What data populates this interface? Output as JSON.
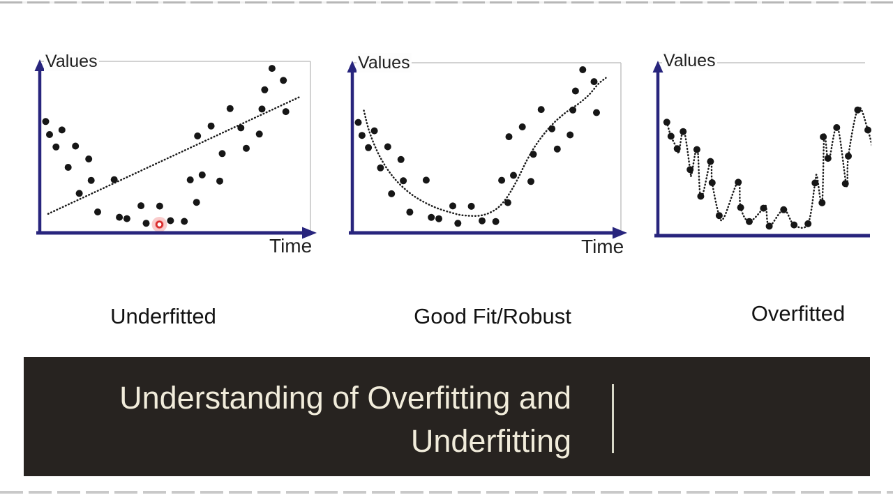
{
  "page": {
    "background": "#ffffff",
    "top_edge_color": "#b7b7b7",
    "bottom_edge_color": "#c9c9c9"
  },
  "banner": {
    "title": "Understanding of Overfitting and\nUnderfitting",
    "background": "#272320",
    "text_color": "#f1ecdb",
    "separator_color": "#d8d8c8"
  },
  "chart_data": [
    {
      "type": "scatter",
      "caption": "Underfitted",
      "ylabel": "Values",
      "xlabel": "Time",
      "axis_color": "#28257d",
      "dot_color": "#161616",
      "fit_color": "#1a1a1a",
      "frame_color": "#c4c4c4",
      "axis_ticks": "none",
      "legend": "none",
      "xlim": [
        0,
        100
      ],
      "ylim": [
        0,
        100
      ],
      "fit_style": "linear-dotted",
      "points": [
        [
          2.2,
          64.9
        ],
        [
          3.6,
          57.3
        ],
        [
          6.0,
          50.1
        ],
        [
          8.2,
          60.0
        ],
        [
          10.5,
          38.2
        ],
        [
          13.2,
          50.6
        ],
        [
          14.6,
          23.0
        ],
        [
          18.1,
          43.1
        ],
        [
          19.0,
          30.6
        ],
        [
          21.4,
          12.2
        ],
        [
          27.5,
          31.0
        ],
        [
          29.4,
          9.1
        ],
        [
          32.2,
          8.3
        ],
        [
          37.4,
          15.8
        ],
        [
          39.3,
          5.6
        ],
        [
          44.3,
          15.6
        ],
        [
          48.3,
          7.1
        ],
        [
          53.4,
          6.7
        ],
        [
          55.6,
          30.9
        ],
        [
          57.9,
          17.8
        ],
        [
          58.3,
          56.5
        ],
        [
          60.0,
          33.8
        ],
        [
          63.3,
          62.3
        ],
        [
          66.5,
          30.2
        ],
        [
          67.4,
          46.2
        ],
        [
          70.3,
          72.5
        ],
        [
          74.3,
          61.2
        ],
        [
          76.3,
          49.3
        ],
        [
          81.1,
          57.6
        ],
        [
          82.1,
          72.2
        ],
        [
          83.1,
          83.4
        ],
        [
          85.8,
          95.9
        ],
        [
          90.0,
          88.9
        ],
        [
          90.9,
          70.7
        ]
      ],
      "fit_line": [
        [
          3.1,
          11.1
        ],
        [
          95.8,
          79.1
        ]
      ],
      "highlight_point": [
        44.2,
        4.9
      ],
      "highlight_color": "#d92b2b"
    },
    {
      "type": "scatter",
      "caption": "Good Fit/Robust",
      "ylabel": "Values",
      "xlabel": "Time",
      "axis_color": "#28257d",
      "dot_color": "#161616",
      "fit_color": "#1a1a1a",
      "frame_color": "#c4c4c4",
      "axis_ticks": "none",
      "legend": "none",
      "xlim": [
        0,
        100
      ],
      "ylim": [
        0,
        100
      ],
      "fit_style": "smooth-dotted",
      "points": [
        [
          2.2,
          64.9
        ],
        [
          3.6,
          57.3
        ],
        [
          6.0,
          50.1
        ],
        [
          8.2,
          60.0
        ],
        [
          10.5,
          38.2
        ],
        [
          13.2,
          50.6
        ],
        [
          14.6,
          23.0
        ],
        [
          18.1,
          43.1
        ],
        [
          19.0,
          30.6
        ],
        [
          21.4,
          12.2
        ],
        [
          27.5,
          31.0
        ],
        [
          29.4,
          9.1
        ],
        [
          32.2,
          8.3
        ],
        [
          37.4,
          15.8
        ],
        [
          39.3,
          5.6
        ],
        [
          44.3,
          15.6
        ],
        [
          48.3,
          7.1
        ],
        [
          53.4,
          6.7
        ],
        [
          55.6,
          30.9
        ],
        [
          57.9,
          17.8
        ],
        [
          58.3,
          56.5
        ],
        [
          60.0,
          33.8
        ],
        [
          63.3,
          62.3
        ],
        [
          66.5,
          30.2
        ],
        [
          67.4,
          46.2
        ],
        [
          70.3,
          72.5
        ],
        [
          74.3,
          61.2
        ],
        [
          76.3,
          49.3
        ],
        [
          81.1,
          57.6
        ],
        [
          82.1,
          72.2
        ],
        [
          83.1,
          83.4
        ],
        [
          85.8,
          95.9
        ],
        [
          90.0,
          88.9
        ],
        [
          90.9,
          70.7
        ]
      ],
      "fit_curve": [
        [
          4.3,
          71.9
        ],
        [
          6.5,
          58.8
        ],
        [
          10.4,
          44.4
        ],
        [
          15.6,
          32.1
        ],
        [
          22.1,
          22.6
        ],
        [
          29.9,
          15.6
        ],
        [
          37.7,
          11.5
        ],
        [
          42.0,
          10.2
        ],
        [
          48.1,
          10.3
        ],
        [
          53.2,
          13.6
        ],
        [
          57.1,
          19.8
        ],
        [
          61.0,
          30.0
        ],
        [
          64.9,
          42.4
        ],
        [
          68.8,
          52.7
        ],
        [
          74.0,
          63.0
        ],
        [
          79.2,
          70.4
        ],
        [
          84.4,
          76.1
        ],
        [
          88.3,
          81.5
        ],
        [
          91.7,
          87.7
        ],
        [
          94.4,
          91.1
        ]
      ]
    },
    {
      "type": "scatter",
      "caption": "Overfitted",
      "ylabel": "Values",
      "xlabel": "",
      "axis_color": "#28257d",
      "dot_color": "#161616",
      "fit_color": "#1a1a1a",
      "frame_color": "#c4c4c4",
      "axis_ticks": "none",
      "legend": "none",
      "xlim": [
        0,
        100
      ],
      "ylim": [
        0,
        100
      ],
      "fit_style": "wiggly-dotted",
      "points": [
        [
          4.2,
          65.6
        ],
        [
          6.2,
          57.5
        ],
        [
          9.1,
          50.3
        ],
        [
          11.9,
          60.2
        ],
        [
          15.2,
          38.2
        ],
        [
          18.4,
          49.8
        ],
        [
          20.2,
          22.8
        ],
        [
          24.8,
          42.9
        ],
        [
          25.6,
          30.6
        ],
        [
          28.9,
          11.6
        ],
        [
          37.9,
          30.9
        ],
        [
          39.0,
          16.3
        ],
        [
          43.1,
          8.2
        ],
        [
          49.8,
          15.9
        ],
        [
          52.5,
          5.5
        ],
        [
          59.3,
          15.0
        ],
        [
          64.2,
          6.2
        ],
        [
          70.8,
          6.9
        ],
        [
          74.1,
          30.5
        ],
        [
          77.4,
          19.0
        ],
        [
          78.0,
          57.1
        ],
        [
          80.2,
          44.7
        ],
        [
          84.3,
          62.5
        ],
        [
          88.4,
          30.1
        ],
        [
          89.8,
          46.0
        ],
        [
          94.2,
          72.7
        ],
        [
          99.0,
          61.1
        ]
      ],
      "fit_curve": [
        [
          4.2,
          65.6
        ],
        [
          6.2,
          57.5
        ],
        [
          9.1,
          50.3
        ],
        [
          9.9,
          48.2
        ],
        [
          12.2,
          61.0
        ],
        [
          15.2,
          38.2
        ],
        [
          15.8,
          35.2
        ],
        [
          18.6,
          50.6
        ],
        [
          20.3,
          22.0
        ],
        [
          24.9,
          43.5
        ],
        [
          25.6,
          30.6
        ],
        [
          28.9,
          11.6
        ],
        [
          31.3,
          10.9
        ],
        [
          37.9,
          31.5
        ],
        [
          39.0,
          16.3
        ],
        [
          43.1,
          8.2
        ],
        [
          49.8,
          15.9
        ],
        [
          51.0,
          16.8
        ],
        [
          52.5,
          5.5
        ],
        [
          59.3,
          15.0
        ],
        [
          64.2,
          6.2
        ],
        [
          70.8,
          6.9
        ],
        [
          74.1,
          30.5
        ],
        [
          75.0,
          34.4
        ],
        [
          77.4,
          19.0
        ],
        [
          78.5,
          58.7
        ],
        [
          80.5,
          43.5
        ],
        [
          84.6,
          63.0
        ],
        [
          89.0,
          28.7
        ],
        [
          89.8,
          46.0
        ],
        [
          94.5,
          73.8
        ],
        [
          99.0,
          61.1
        ],
        [
          101.5,
          49.0
        ]
      ]
    }
  ]
}
